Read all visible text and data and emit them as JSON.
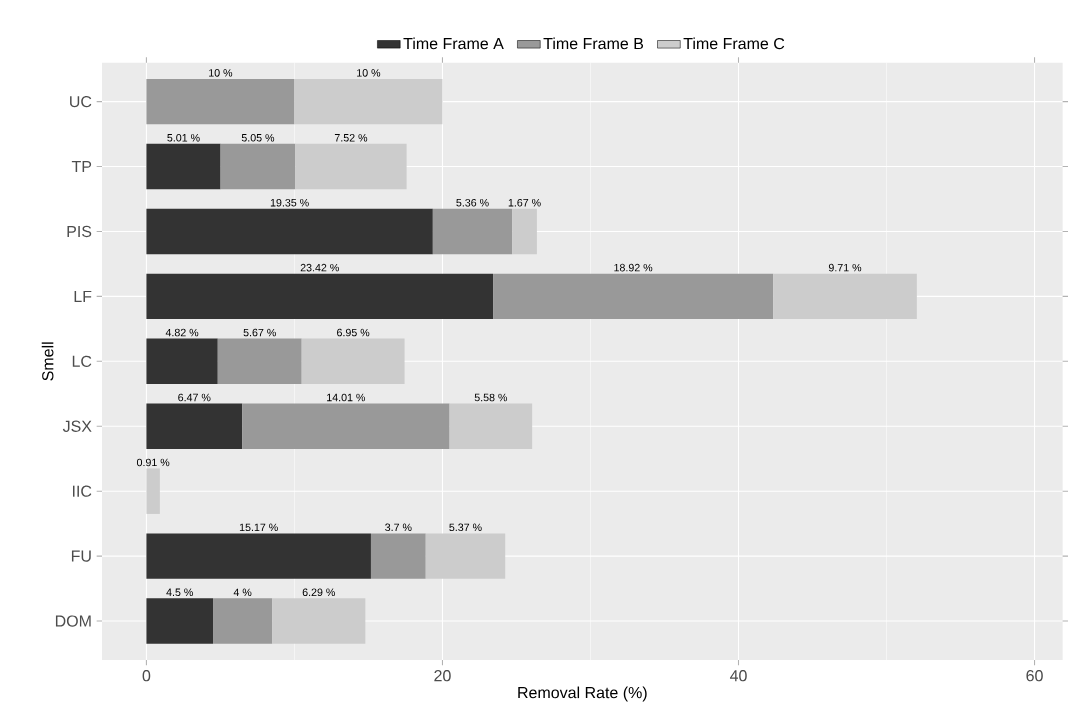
{
  "chart_data": {
    "type": "bar",
    "orientation": "horizontal",
    "stacked": true,
    "categories": [
      "UC",
      "TP",
      "PIS",
      "LF",
      "LC",
      "JSX",
      "IIC",
      "FU",
      "DOM"
    ],
    "series": [
      {
        "name": "Time Frame A",
        "color": "#333333",
        "values": [
          null,
          5.01,
          19.35,
          23.42,
          4.82,
          6.47,
          null,
          15.17,
          4.5
        ],
        "value_labels": [
          null,
          "5.01 %",
          "19.35 %",
          "23.42 %",
          "4.82 %",
          "6.47 %",
          null,
          "15.17 %",
          "4.5 %"
        ]
      },
      {
        "name": "Time Frame B",
        "color": "#999999",
        "values": [
          10,
          5.05,
          5.36,
          18.92,
          5.67,
          14.01,
          null,
          3.7,
          4
        ],
        "value_labels": [
          "10 %",
          "5.05 %",
          "5.36 %",
          "18.92 %",
          "5.67 %",
          "14.01 %",
          null,
          "3.7 %",
          "4 %"
        ]
      },
      {
        "name": "Time Frame C",
        "color": "#cccccc",
        "values": [
          10,
          7.52,
          1.67,
          9.71,
          6.95,
          5.58,
          0.91,
          5.37,
          6.29
        ],
        "value_labels": [
          "10 %",
          "7.52 %",
          "1.67 %",
          "9.71 %",
          "6.95 %",
          "5.58 %",
          "0.91 %",
          "5.37 %",
          "6.29 %"
        ]
      }
    ],
    "xlim": [
      -3,
      61.9
    ],
    "xticks": [
      0,
      20,
      40,
      60
    ],
    "xlabel": "Removal Rate (%)",
    "ylabel": "Smell",
    "grid": true,
    "legend": "top"
  }
}
